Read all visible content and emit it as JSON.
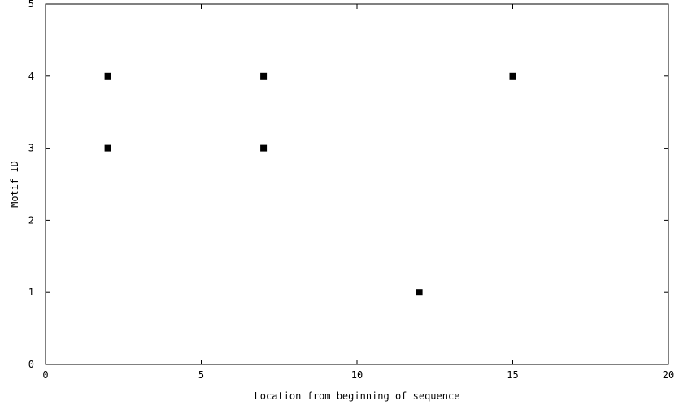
{
  "chart_data": {
    "type": "scatter",
    "title": "",
    "xlabel": "Location from beginning of sequence",
    "ylabel": "Motif ID",
    "xlim": [
      0,
      20
    ],
    "ylim": [
      0,
      5
    ],
    "x_ticks": [
      "0",
      "5",
      "10",
      "15",
      "20"
    ],
    "y_ticks": [
      "0",
      "1",
      "2",
      "3",
      "4",
      "5"
    ],
    "grid": false,
    "legend": "none",
    "marker": "square",
    "marker_color": "#000000",
    "series": [
      {
        "points": [
          {
            "x": 2,
            "y": 4
          },
          {
            "x": 2,
            "y": 3
          },
          {
            "x": 7,
            "y": 4
          },
          {
            "x": 7,
            "y": 3
          },
          {
            "x": 12,
            "y": 1
          },
          {
            "x": 15,
            "y": 4
          }
        ]
      }
    ]
  }
}
